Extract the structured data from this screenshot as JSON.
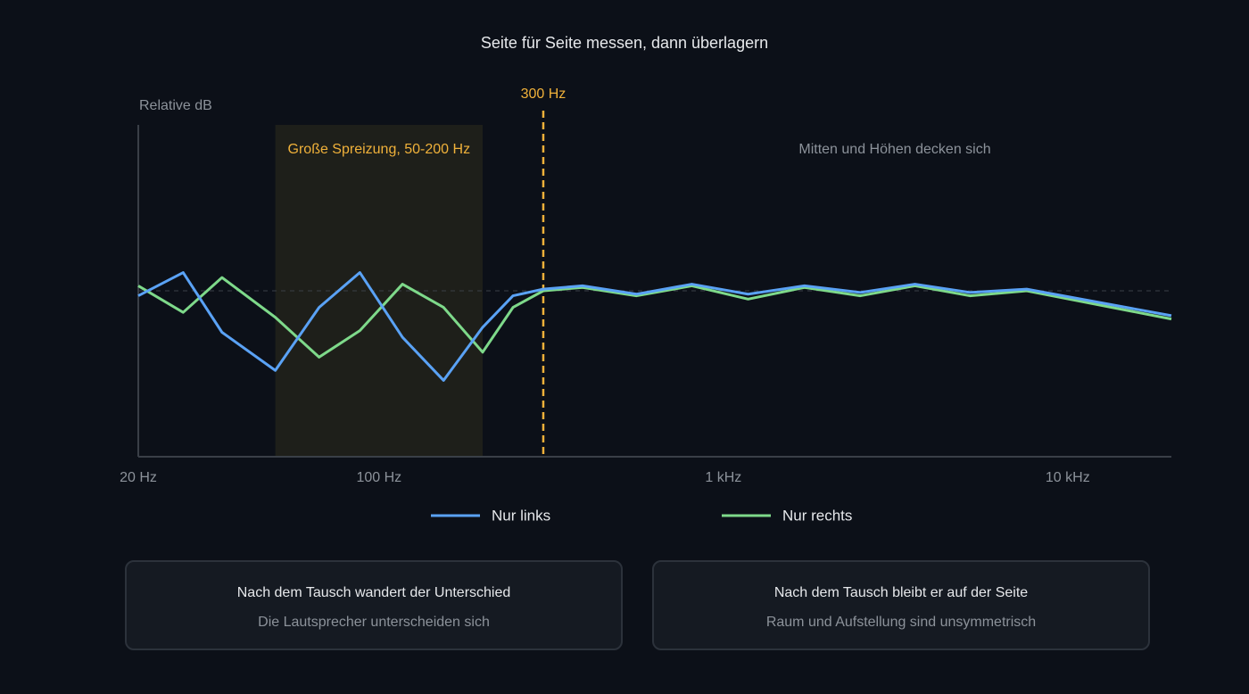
{
  "chart_data": {
    "type": "line",
    "title": "Seite für Seite messen, dann überlagern",
    "ylabel": "Relative dB",
    "xscale": "log",
    "x": [
      20,
      27,
      35,
      50,
      67,
      88,
      117,
      154,
      200,
      245,
      300,
      390,
      560,
      810,
      1180,
      1720,
      2500,
      3600,
      5200,
      7600,
      20000
    ],
    "series": [
      {
        "name": "Nur links",
        "color": "#5aa2f5",
        "values": [
          -0.3,
          1.1,
          -2.5,
          -4.8,
          -1.0,
          1.1,
          -2.8,
          -5.4,
          -2.2,
          -0.3,
          0.1,
          0.3,
          -0.2,
          0.4,
          -0.2,
          0.3,
          -0.1,
          0.4,
          -0.1,
          0.1,
          -1.5
        ]
      },
      {
        "name": "Nur rechts",
        "color": "#7ed98a",
        "values": [
          0.3,
          -1.3,
          0.8,
          -1.6,
          -4.0,
          -2.4,
          0.4,
          -1.0,
          -3.7,
          -1.0,
          0,
          0.2,
          -0.3,
          0.3,
          -0.5,
          0.2,
          -0.3,
          0.3,
          -0.3,
          0,
          -1.7
        ]
      }
    ],
    "xlim": [
      20,
      20000
    ],
    "xticks": [
      {
        "value": 20,
        "label": "20 Hz"
      },
      {
        "value": 100,
        "label": "100 Hz"
      },
      {
        "value": 1000,
        "label": "1 kHz"
      },
      {
        "value": 10000,
        "label": "10 kHz"
      }
    ],
    "ylim": [
      -10,
      10
    ],
    "reference_line": 0,
    "band": {
      "from": 50,
      "to": 200,
      "label": "Große Spreizung, 50-200 Hz"
    },
    "marker": {
      "value": 300,
      "label": "300 Hz",
      "color": "#f0b13a"
    },
    "note": "Mitten und Höhen decken sich"
  },
  "cards": [
    {
      "title": "Nach dem Tausch wandert der Unterschied",
      "subtitle": "Die Lautsprecher unterscheiden sich"
    },
    {
      "title": "Nach dem Tausch bleibt er auf der Seite",
      "subtitle": "Raum und Aufstellung sind unsymmetrisch"
    }
  ]
}
